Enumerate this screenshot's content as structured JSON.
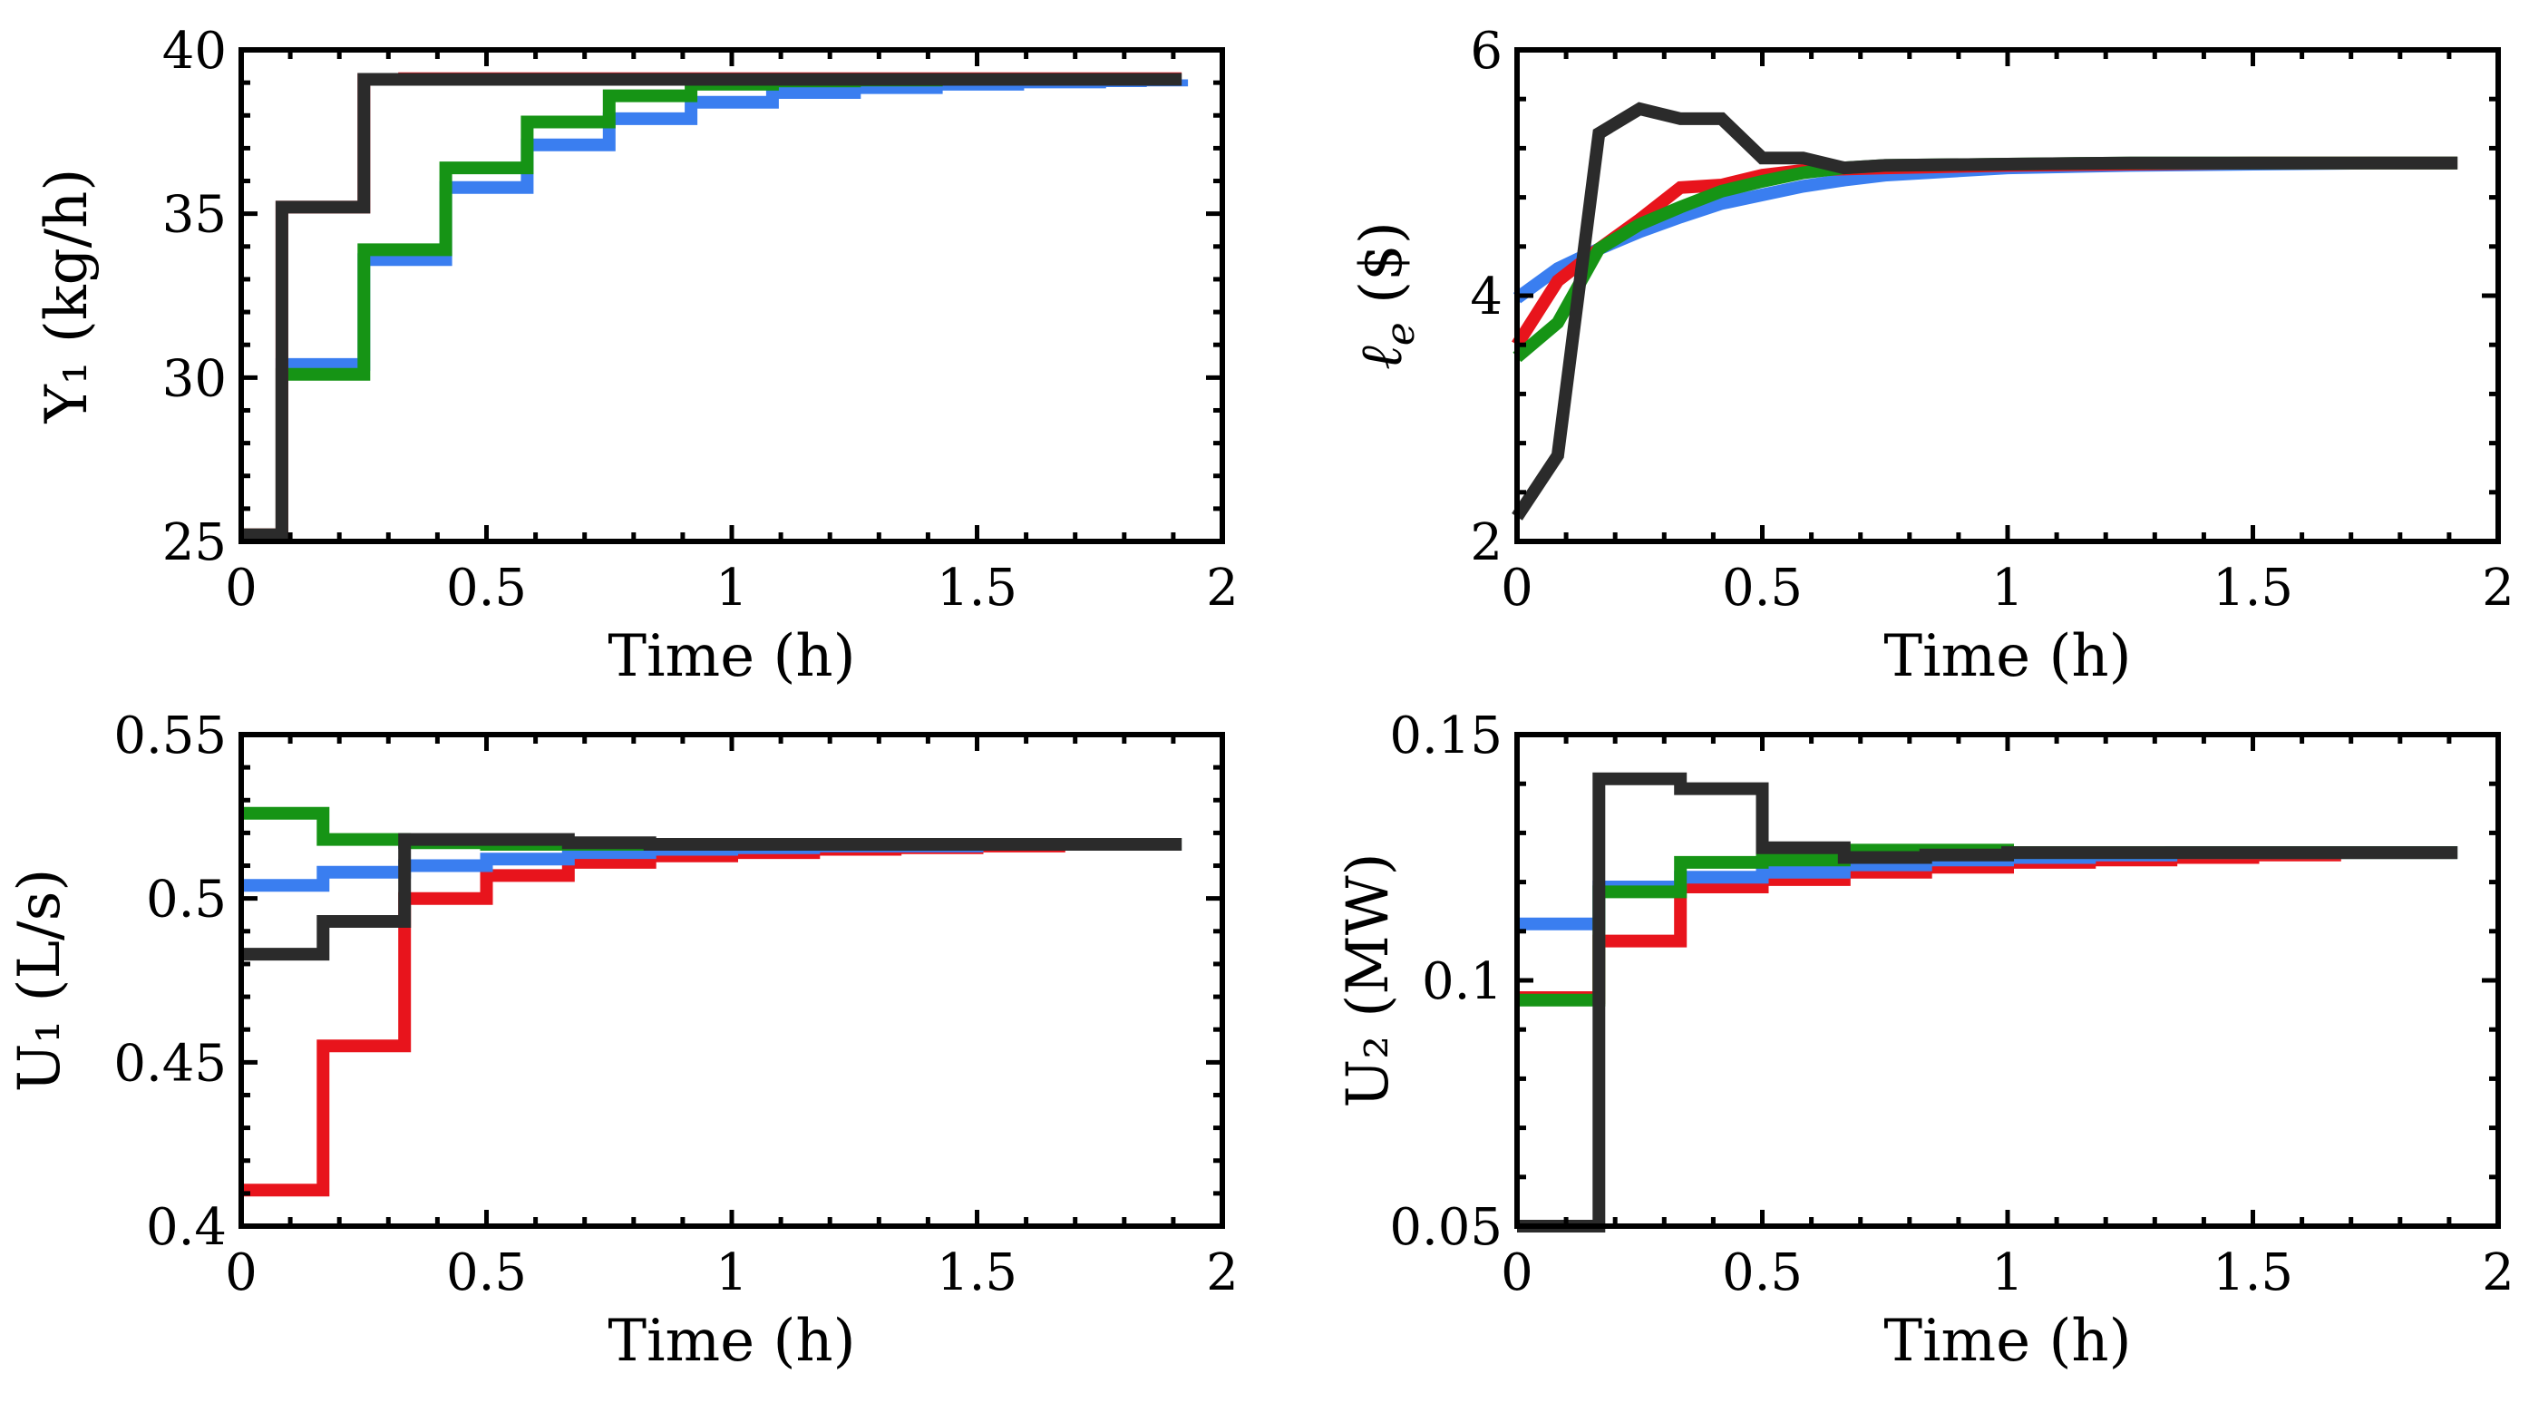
{
  "colors": {
    "red": "#e8141c",
    "blue": "#3a7ef0",
    "green": "#169415",
    "black": "#2b2b2b"
  },
  "chart_data": [
    {
      "id": "y1",
      "type": "line",
      "xlabel": "Time (h)",
      "ylabel": "Y₁ (kg/h)",
      "xlim": [
        0,
        2
      ],
      "ylim": [
        25,
        40
      ],
      "xticks": [
        0,
        0.5,
        1,
        1.5,
        2
      ],
      "yticks": [
        25,
        30,
        35,
        40
      ],
      "xtick_labels": [
        "0",
        "0.5",
        "1",
        "1.5",
        "2"
      ],
      "ytick_labels": [
        "25",
        "30",
        "35",
        "40"
      ],
      "series": [
        {
          "name": "blue",
          "color": "#3a7ef0",
          "step": true,
          "x": [
            0,
            0.083,
            0.167,
            0.25,
            0.333,
            0.417,
            0.5,
            0.583,
            0.667,
            0.75,
            0.833,
            0.917,
            1.0,
            1.083,
            1.167,
            1.25,
            1.333,
            1.417,
            1.5,
            1.583,
            1.667,
            1.75,
            1.833,
            1.917
          ],
          "y": [
            25.2,
            30.4,
            30.4,
            33.6,
            33.6,
            35.8,
            35.8,
            37.1,
            37.1,
            37.9,
            37.9,
            38.4,
            38.4,
            38.7,
            38.7,
            38.85,
            38.85,
            38.95,
            38.95,
            39.02,
            39.02,
            39.06,
            39.08,
            39.1
          ]
        },
        {
          "name": "green",
          "color": "#169415",
          "step": true,
          "x": [
            0,
            0.083,
            0.167,
            0.25,
            0.333,
            0.417,
            0.5,
            0.583,
            0.667,
            0.75,
            0.833,
            0.917,
            1.0,
            1.083,
            1.167,
            1.25,
            1.333,
            1.417,
            1.5,
            1.583,
            1.667,
            1.75,
            1.833,
            1.917
          ],
          "y": [
            25.2,
            30.1,
            30.1,
            33.9,
            33.9,
            36.4,
            36.4,
            37.8,
            37.8,
            38.6,
            38.6,
            38.95,
            38.95,
            39.05,
            39.05,
            39.08,
            39.08,
            39.1,
            39.1,
            39.1,
            39.1,
            39.1,
            39.1,
            39.1
          ]
        },
        {
          "name": "red",
          "color": "#e8141c",
          "step": true,
          "x": [
            0,
            0.083,
            0.167,
            0.25,
            0.333,
            0.5,
            0.75,
            1.0,
            1.25,
            1.5,
            1.75,
            1.917
          ],
          "y": [
            25.2,
            35.2,
            35.2,
            39.1,
            39.12,
            39.12,
            39.12,
            39.12,
            39.12,
            39.12,
            39.12,
            39.12
          ]
        },
        {
          "name": "black",
          "color": "#2b2b2b",
          "step": true,
          "x": [
            0,
            0.083,
            0.167,
            0.25,
            0.333,
            0.5,
            0.75,
            1.0,
            1.25,
            1.5,
            1.75,
            1.917
          ],
          "y": [
            25.2,
            35.2,
            35.2,
            39.1,
            39.1,
            39.1,
            39.1,
            39.1,
            39.1,
            39.1,
            39.1,
            39.1
          ]
        }
      ]
    },
    {
      "id": "le",
      "type": "line",
      "xlabel": "Time (h)",
      "ylabel": "ℓe ($)",
      "ylabel_main": "ℓ",
      "ylabel_sub": "e",
      "ylabel_rest": " ($)",
      "xlim": [
        0,
        2
      ],
      "ylim": [
        2,
        6
      ],
      "xticks": [
        0,
        0.5,
        1,
        1.5,
        2
      ],
      "yticks": [
        2,
        4,
        6
      ],
      "xtick_labels": [
        "0",
        "0.5",
        "1",
        "1.5",
        "2"
      ],
      "ytick_labels": [
        "2",
        "4",
        "6"
      ],
      "series": [
        {
          "name": "blue",
          "color": "#3a7ef0",
          "step": false,
          "x": [
            0,
            0.083,
            0.167,
            0.25,
            0.333,
            0.417,
            0.5,
            0.583,
            0.667,
            0.75,
            0.833,
            0.917,
            1.0,
            1.25,
            1.5,
            1.75,
            1.917
          ],
          "y": [
            3.98,
            4.22,
            4.38,
            4.52,
            4.64,
            4.75,
            4.82,
            4.89,
            4.94,
            4.98,
            5.0,
            5.02,
            5.04,
            5.06,
            5.07,
            5.08,
            5.08
          ]
        },
        {
          "name": "red",
          "color": "#e8141c",
          "step": false,
          "x": [
            0,
            0.083,
            0.167,
            0.25,
            0.333,
            0.417,
            0.5,
            0.583,
            0.667,
            0.75,
            1.0,
            1.25,
            1.5,
            1.75,
            1.917
          ],
          "y": [
            3.6,
            4.12,
            4.38,
            4.62,
            4.88,
            4.9,
            4.98,
            5.02,
            5.03,
            5.04,
            5.06,
            5.07,
            5.08,
            5.08,
            5.08
          ]
        },
        {
          "name": "green",
          "color": "#169415",
          "step": false,
          "x": [
            0,
            0.083,
            0.167,
            0.25,
            0.333,
            0.417,
            0.5,
            0.583,
            0.667,
            0.75,
            1.0,
            1.25,
            1.5,
            1.75,
            1.917
          ],
          "y": [
            3.5,
            3.78,
            4.38,
            4.58,
            4.72,
            4.85,
            4.93,
            5.0,
            5.04,
            5.06,
            5.07,
            5.08,
            5.08,
            5.08,
            5.08
          ]
        },
        {
          "name": "black",
          "color": "#2b2b2b",
          "step": false,
          "x": [
            0,
            0.083,
            0.167,
            0.25,
            0.333,
            0.417,
            0.5,
            0.583,
            0.667,
            0.75,
            1.0,
            1.25,
            1.5,
            1.75,
            1.917
          ],
          "y": [
            2.2,
            2.7,
            5.32,
            5.52,
            5.44,
            5.44,
            5.12,
            5.12,
            5.04,
            5.06,
            5.07,
            5.08,
            5.08,
            5.08,
            5.08
          ]
        }
      ]
    },
    {
      "id": "u1",
      "type": "line",
      "xlabel": "Time (h)",
      "ylabel": "U₁ (L/s)",
      "xlim": [
        0,
        2
      ],
      "ylim": [
        0.4,
        0.55
      ],
      "xticks": [
        0,
        0.5,
        1,
        1.5,
        2
      ],
      "yticks": [
        0.4,
        0.45,
        0.5,
        0.55
      ],
      "xtick_labels": [
        "0",
        "0.5",
        "1",
        "1.5",
        "2"
      ],
      "ytick_labels": [
        "0.4",
        "0.45",
        "0.5",
        "0.55"
      ],
      "series": [
        {
          "name": "red",
          "color": "#e8141c",
          "step": true,
          "x": [
            0,
            0.167,
            0.333,
            0.5,
            0.667,
            0.833,
            1.0,
            1.167,
            1.333,
            1.5,
            1.667,
            1.917
          ],
          "y": [
            0.411,
            0.455,
            0.5,
            0.507,
            0.511,
            0.513,
            0.514,
            0.515,
            0.5155,
            0.516,
            0.5165,
            0.5165
          ]
        },
        {
          "name": "blue",
          "color": "#3a7ef0",
          "step": true,
          "x": [
            0,
            0.167,
            0.333,
            0.5,
            0.667,
            0.833,
            1.0,
            1.167,
            1.333,
            1.5,
            1.667,
            1.917
          ],
          "y": [
            0.504,
            0.508,
            0.51,
            0.512,
            0.514,
            0.515,
            0.5155,
            0.516,
            0.516,
            0.5165,
            0.5165,
            0.5165
          ]
        },
        {
          "name": "green",
          "color": "#169415",
          "step": true,
          "x": [
            0,
            0.167,
            0.333,
            0.5,
            0.667,
            0.833,
            1.0,
            1.167,
            1.333,
            1.5,
            1.667,
            1.917
          ],
          "y": [
            0.526,
            0.518,
            0.517,
            0.5165,
            0.5165,
            0.5165,
            0.5165,
            0.5165,
            0.5165,
            0.5165,
            0.5165,
            0.5165
          ]
        },
        {
          "name": "black",
          "color": "#2b2b2b",
          "step": true,
          "x": [
            0,
            0.167,
            0.333,
            0.5,
            0.667,
            0.833,
            1.0,
            1.167,
            1.333,
            1.5,
            1.667,
            1.917
          ],
          "y": [
            0.483,
            0.493,
            0.518,
            0.518,
            0.517,
            0.5165,
            0.5165,
            0.5165,
            0.5165,
            0.5165,
            0.5165,
            0.5165
          ]
        }
      ]
    },
    {
      "id": "u2",
      "type": "line",
      "xlabel": "Time (h)",
      "ylabel": "U₂ (MW)",
      "xlim": [
        0,
        2
      ],
      "ylim": [
        0.05,
        0.15
      ],
      "xticks": [
        0,
        0.5,
        1,
        1.5,
        2
      ],
      "yticks": [
        0.05,
        0.1,
        0.15
      ],
      "xtick_labels": [
        "0",
        "0.5",
        "1",
        "1.5",
        "2"
      ],
      "ytick_labels": [
        "0.05",
        "0.1",
        "0.15"
      ],
      "series": [
        {
          "name": "red",
          "color": "#e8141c",
          "step": true,
          "x": [
            0,
            0.167,
            0.333,
            0.5,
            0.667,
            0.833,
            1.0,
            1.167,
            1.333,
            1.5,
            1.667,
            1.917
          ],
          "y": [
            0.0965,
            0.108,
            0.119,
            0.1205,
            0.122,
            0.123,
            0.124,
            0.1245,
            0.125,
            0.1255,
            0.126,
            0.126
          ]
        },
        {
          "name": "blue",
          "color": "#3a7ef0",
          "step": true,
          "x": [
            0,
            0.167,
            0.333,
            0.5,
            0.667,
            0.833,
            1.0,
            1.167,
            1.333,
            1.5,
            1.667,
            1.917
          ],
          "y": [
            0.1115,
            0.119,
            0.121,
            0.122,
            0.1235,
            0.1245,
            0.125,
            0.1255,
            0.126,
            0.126,
            0.126,
            0.126
          ]
        },
        {
          "name": "green",
          "color": "#169415",
          "step": true,
          "x": [
            0,
            0.167,
            0.333,
            0.5,
            0.667,
            0.833,
            1.0,
            1.167,
            1.333,
            1.5,
            1.667,
            1.917
          ],
          "y": [
            0.096,
            0.118,
            0.124,
            0.1245,
            0.1265,
            0.1265,
            0.126,
            0.126,
            0.126,
            0.126,
            0.126,
            0.126
          ]
        },
        {
          "name": "black",
          "color": "#2b2b2b",
          "step": true,
          "x": [
            0,
            0.167,
            0.333,
            0.5,
            0.667,
            0.833,
            1.0,
            1.167,
            1.333,
            1.5,
            1.667,
            1.917
          ],
          "y": [
            0.05,
            0.141,
            0.139,
            0.127,
            0.125,
            0.1255,
            0.126,
            0.126,
            0.126,
            0.126,
            0.126,
            0.126
          ]
        }
      ]
    }
  ]
}
